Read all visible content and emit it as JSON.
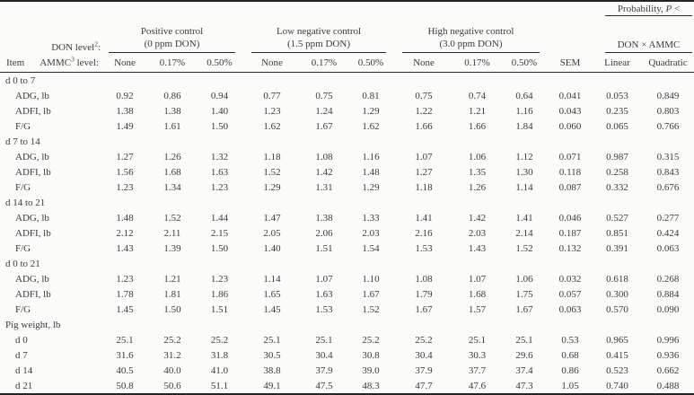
{
  "table": {
    "header": {
      "probability": {
        "prefix": "Probability, ",
        "p": "P",
        "suffix": " <"
      },
      "don_level": {
        "text": "DON level",
        "sup": "2",
        "suffix": ":"
      },
      "item_label": "Item",
      "ammc_level": {
        "text": "AMMC",
        "sup": "3",
        "suffix": " level:"
      },
      "groups": [
        {
          "name": "Positive control",
          "sub": "(0 ppm DON)"
        },
        {
          "name": "Low negative control",
          "sub": "(1.5 ppm DON)"
        },
        {
          "name": "High negative control",
          "sub": "(3.0 ppm DON)"
        }
      ],
      "don_ammc_label": "DON × AMMC",
      "ammc_cols": [
        "None",
        "0.17%",
        "0.50%"
      ],
      "sem_label": "SEM",
      "prob_cols": [
        "Linear",
        "Quadratic"
      ]
    },
    "sections": [
      {
        "label": "d 0 to 7",
        "rows": [
          {
            "label": "ADG, lb",
            "values": [
              "0.92",
              "0.86",
              "0.94",
              "0.77",
              "0.75",
              "0.81",
              "0.75",
              "0.74",
              "0.64",
              "0.041",
              "0.053",
              "0.849"
            ]
          },
          {
            "label": "ADFI, lb",
            "values": [
              "1.38",
              "1.38",
              "1.40",
              "1.23",
              "1.24",
              "1.29",
              "1.22",
              "1.21",
              "1.16",
              "0.043",
              "0.235",
              "0.803"
            ]
          },
          {
            "label": "F/G",
            "values": [
              "1.49",
              "1.61",
              "1.50",
              "1.62",
              "1.67",
              "1.62",
              "1.66",
              "1.66",
              "1.84",
              "0.060",
              "0.065",
              "0.766"
            ]
          }
        ]
      },
      {
        "label": "d 7 to 14",
        "rows": [
          {
            "label": "ADG, lb",
            "values": [
              "1.27",
              "1.26",
              "1.32",
              "1.18",
              "1.08",
              "1.16",
              "1.07",
              "1.06",
              "1.12",
              "0.071",
              "0.987",
              "0.315"
            ]
          },
          {
            "label": "ADFI, lb",
            "values": [
              "1.56",
              "1.68",
              "1.63",
              "1.52",
              "1.42",
              "1.48",
              "1.27",
              "1.35",
              "1.30",
              "0.118",
              "0.258",
              "0.843"
            ]
          },
          {
            "label": "F/G",
            "values": [
              "1.23",
              "1.34",
              "1.23",
              "1.29",
              "1.31",
              "1.29",
              "1.18",
              "1.26",
              "1.14",
              "0.087",
              "0.332",
              "0.676"
            ]
          }
        ]
      },
      {
        "label": "d 14 to 21",
        "rows": [
          {
            "label": "ADG, lb",
            "values": [
              "1.48",
              "1.52",
              "1.44",
              "1.47",
              "1.38",
              "1.33",
              "1.41",
              "1.42",
              "1.41",
              "0.046",
              "0.527",
              "0.277"
            ]
          },
          {
            "label": "ADFI, lb",
            "values": [
              "2.12",
              "2.11",
              "2.15",
              "2.05",
              "2.06",
              "2.03",
              "2.16",
              "2.03",
              "2.14",
              "0.187",
              "0.851",
              "0.424"
            ]
          },
          {
            "label": "F/G",
            "values": [
              "1.43",
              "1.39",
              "1.50",
              "1.40",
              "1.51",
              "1.54",
              "1.53",
              "1.43",
              "1.52",
              "0.132",
              "0.391",
              "0.063"
            ]
          }
        ]
      },
      {
        "label": "d 0 to 21",
        "rows": [
          {
            "label": "ADG, lb",
            "values": [
              "1.23",
              "1.21",
              "1.23",
              "1.14",
              "1.07",
              "1.10",
              "1.08",
              "1.07",
              "1.06",
              "0.032",
              "0.618",
              "0.268"
            ]
          },
          {
            "label": "ADFI, lb",
            "values": [
              "1.78",
              "1.81",
              "1.86",
              "1.65",
              "1.63",
              "1.67",
              "1.79",
              "1.68",
              "1.75",
              "0.057",
              "0.300",
              "0.884"
            ]
          },
          {
            "label": "F/G",
            "values": [
              "1.45",
              "1.50",
              "1.51",
              "1.45",
              "1.53",
              "1.52",
              "1.67",
              "1.57",
              "1.67",
              "0.063",
              "0.570",
              "0.090"
            ]
          }
        ]
      },
      {
        "label": "Pig weight, lb",
        "rows": [
          {
            "label": "d 0",
            "values": [
              "25.1",
              "25.2",
              "25.2",
              "25.1",
              "25.1",
              "25.2",
              "25.2",
              "25.1",
              "25.1",
              "0.53",
              "0.965",
              "0.996"
            ]
          },
          {
            "label": "d 7",
            "values": [
              "31.6",
              "31.2",
              "31.8",
              "30.5",
              "30.4",
              "30.8",
              "30.4",
              "30.3",
              "29.6",
              "0.68",
              "0.415",
              "0.936"
            ]
          },
          {
            "label": "d 14",
            "values": [
              "40.5",
              "40.0",
              "41.0",
              "38.8",
              "37.9",
              "39.0",
              "37.9",
              "37.7",
              "37.4",
              "0.86",
              "0.523",
              "0.662"
            ]
          },
          {
            "label": "d 21",
            "values": [
              "50.8",
              "50.6",
              "51.1",
              "49.1",
              "47.5",
              "48.3",
              "47.7",
              "47.6",
              "47.3",
              "1.05",
              "0.740",
              "0.488"
            ]
          }
        ]
      }
    ]
  }
}
